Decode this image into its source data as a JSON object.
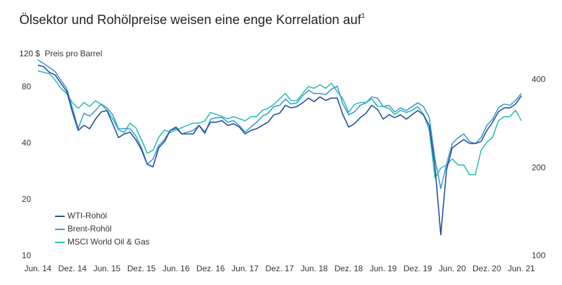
{
  "chart_data": {
    "type": "line",
    "title": "Ölsektor und Rohölpreise weisen eine enge Korrelation auf",
    "title_footnote": "1",
    "y_label": "Preis pro Barrel",
    "ylog": true,
    "y2log": true,
    "grid": false,
    "legend": "lower left",
    "ylim": [
      10,
      120
    ],
    "yticks": [
      10,
      20,
      40,
      80,
      {
        "value": 120,
        "label": "120 $"
      }
    ],
    "y2lim": [
      100,
      490
    ],
    "y2ticks": [
      100,
      200,
      400
    ],
    "x": [
      "2014-06",
      "2014-07",
      "2014-08",
      "2014-09",
      "2014-10",
      "2014-11",
      "2014-12",
      "2015-01",
      "2015-02",
      "2015-03",
      "2015-04",
      "2015-05",
      "2015-06",
      "2015-07",
      "2015-08",
      "2015-09",
      "2015-10",
      "2015-11",
      "2015-12",
      "2016-01",
      "2016-02",
      "2016-03",
      "2016-04",
      "2016-05",
      "2016-06",
      "2016-07",
      "2016-08",
      "2016-09",
      "2016-10",
      "2016-11",
      "2016-12",
      "2017-01",
      "2017-02",
      "2017-03",
      "2017-04",
      "2017-05",
      "2017-06",
      "2017-07",
      "2017-08",
      "2017-09",
      "2017-10",
      "2017-11",
      "2017-12",
      "2018-01",
      "2018-02",
      "2018-03",
      "2018-04",
      "2018-05",
      "2018-06",
      "2018-07",
      "2018-08",
      "2018-09",
      "2018-10",
      "2018-11",
      "2018-12",
      "2019-01",
      "2019-02",
      "2019-03",
      "2019-04",
      "2019-05",
      "2019-06",
      "2019-07",
      "2019-08",
      "2019-09",
      "2019-10",
      "2019-11",
      "2019-12",
      "2020-01",
      "2020-02",
      "2020-03",
      "2020-04",
      "2020-05",
      "2020-06",
      "2020-07",
      "2020-08",
      "2020-09",
      "2020-10",
      "2020-11",
      "2020-12",
      "2021-01",
      "2021-02",
      "2021-03",
      "2021-04",
      "2021-05",
      "2021-06"
    ],
    "xticks": [
      {
        "value": "2014-06",
        "label": "Jun. 14"
      },
      {
        "value": "2014-12",
        "label": "Dez. 14"
      },
      {
        "value": "2015-06",
        "label": "Jun. 15"
      },
      {
        "value": "2015-12",
        "label": "Dez. 15"
      },
      {
        "value": "2016-06",
        "label": "Jun. 16"
      },
      {
        "value": "2016-12",
        "label": "Dez. 16"
      },
      {
        "value": "2017-06",
        "label": "Jun. 17"
      },
      {
        "value": "2017-12",
        "label": "Dez. 17"
      },
      {
        "value": "2018-06",
        "label": "Jun. 18"
      },
      {
        "value": "2018-12",
        "label": "Dez. 18"
      },
      {
        "value": "2019-06",
        "label": "Jun. 19"
      },
      {
        "value": "2019-12",
        "label": "Dez. 19"
      },
      {
        "value": "2020-06",
        "label": "Jun. 20"
      },
      {
        "value": "2020-12",
        "label": "Dez. 20"
      },
      {
        "value": "2021-06",
        "label": "Jun. 21"
      }
    ],
    "series": [
      {
        "name": "WTI-Rohöl",
        "color": "#1f4e9c",
        "values": [
          105,
          103,
          96,
          93,
          84,
          76,
          59,
          47,
          50,
          48,
          54,
          59,
          60,
          51,
          43,
          45,
          46,
          42,
          37,
          31,
          30,
          38,
          41,
          47,
          49,
          45,
          45,
          45,
          50,
          46,
          52,
          52,
          53,
          50,
          51,
          49,
          45,
          47,
          48,
          50,
          52,
          57,
          58,
          64,
          62,
          63,
          66,
          70,
          67,
          71,
          68,
          70,
          70,
          57,
          49,
          51,
          55,
          58,
          64,
          61,
          54,
          57,
          55,
          57,
          54,
          57,
          60,
          57,
          50,
          30,
          13,
          29,
          38,
          40,
          42,
          40,
          40,
          41,
          47,
          52,
          59,
          62,
          62,
          65,
          72
        ]
      },
      {
        "name": "Brent-Rohöl",
        "color": "#3a9ad9",
        "values": [
          112,
          107,
          102,
          97,
          87,
          79,
          62,
          48,
          58,
          56,
          60,
          65,
          62,
          57,
          48,
          48,
          48,
          44,
          38,
          31,
          33,
          39,
          42,
          47,
          48,
          45,
          46,
          47,
          50,
          45,
          54,
          55,
          55,
          52,
          53,
          50,
          46,
          49,
          52,
          56,
          58,
          63,
          64,
          69,
          65,
          66,
          72,
          77,
          74,
          74,
          73,
          78,
          81,
          65,
          57,
          59,
          64,
          66,
          71,
          70,
          63,
          64,
          59,
          62,
          60,
          63,
          66,
          63,
          55,
          33,
          23,
          31,
          40,
          43,
          45,
          41,
          40,
          43,
          50,
          54,
          62,
          65,
          64,
          68,
          74
        ]
      },
      {
        "name": "MSCI World Oil & Gas",
        "color": "#2ebfb0",
        "axis": "y2",
        "values": [
          430,
          425,
          420,
          400,
          375,
          360,
          335,
          320,
          335,
          325,
          340,
          330,
          315,
          295,
          270,
          265,
          285,
          275,
          250,
          225,
          230,
          255,
          270,
          265,
          270,
          275,
          280,
          285,
          285,
          290,
          310,
          305,
          300,
          295,
          300,
          295,
          290,
          300,
          300,
          315,
          320,
          330,
          345,
          360,
          340,
          340,
          360,
          380,
          375,
          385,
          375,
          390,
          365,
          345,
          310,
          330,
          335,
          335,
          345,
          325,
          325,
          320,
          305,
          315,
          310,
          315,
          325,
          305,
          270,
          185,
          200,
          205,
          215,
          205,
          205,
          190,
          190,
          230,
          245,
          255,
          290,
          300,
          300,
          315,
          290
        ]
      }
    ]
  }
}
